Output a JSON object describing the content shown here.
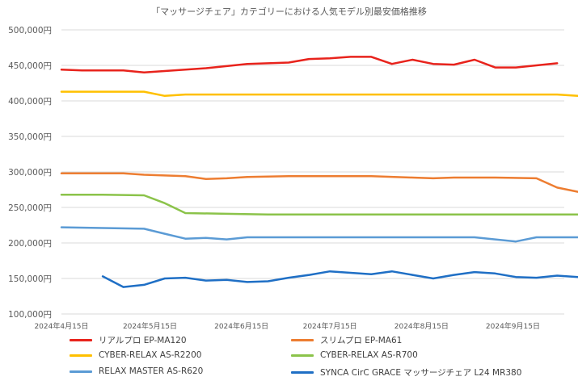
{
  "chart_data": {
    "type": "line",
    "title": "「マッサージチェア」カテゴリーにおける人気モデル別最安価格推移",
    "xlabel": "",
    "ylabel": "",
    "ylim": [
      100000,
      500000
    ],
    "y_ticks": [
      "100,000円",
      "150,000円",
      "200,000円",
      "250,000円",
      "300,000円",
      "350,000円",
      "400,000円",
      "450,000円",
      "500,000円"
    ],
    "x_tick_labels": [
      "2024年4月15日",
      "2024年5月15日",
      "2024年6月15日",
      "2024年7月15日",
      "2024年8月15日",
      "2024年9月15日"
    ],
    "x_day_range": [
      0,
      168
    ],
    "x_tick_days": [
      0,
      30,
      61,
      91,
      122,
      153
    ],
    "grid": true,
    "legend_position": "bottom",
    "series": [
      {
        "name": "リアルプロ EP-MA120",
        "color": "#E8231C",
        "x": [
          0,
          7,
          14,
          21,
          28,
          35,
          42,
          49,
          56,
          63,
          70,
          77,
          84,
          91,
          98,
          105,
          112,
          119,
          126,
          133,
          140,
          147,
          154,
          161,
          168
        ],
        "values": [
          444000,
          443000,
          443000,
          443000,
          440000,
          442000,
          444000,
          446000,
          449000,
          452000,
          453000,
          454000,
          459000,
          460000,
          462000,
          462000,
          452000,
          458000,
          452000,
          451000,
          458000,
          447000,
          447000,
          450000,
          453000
        ]
      },
      {
        "name": "スリムプロ EP-MA61",
        "color": "#ED7D31",
        "x": [
          0,
          14,
          21,
          28,
          42,
          49,
          56,
          63,
          77,
          91,
          105,
          119,
          126,
          133,
          147,
          161,
          168,
          175
        ],
        "values": [
          298000,
          298000,
          298000,
          296000,
          294000,
          290000,
          291000,
          293000,
          294000,
          294000,
          294000,
          292000,
          291000,
          292000,
          292000,
          291000,
          278000,
          272000
        ]
      },
      {
        "name": "CYBER-RELAX AS-R2200",
        "color": "#FFC000",
        "x": [
          0,
          14,
          28,
          35,
          42,
          56,
          70,
          84,
          98,
          112,
          126,
          140,
          154,
          168,
          175
        ],
        "values": [
          413000,
          413000,
          413000,
          407000,
          409000,
          409000,
          409000,
          409000,
          409000,
          409000,
          409000,
          409000,
          409000,
          409000,
          407000
        ]
      },
      {
        "name": "CYBER-RELAX AS-R700",
        "color": "#8BC34A",
        "x": [
          0,
          14,
          28,
          35,
          42,
          56,
          70,
          84,
          98,
          112,
          126,
          140,
          154,
          168,
          175
        ],
        "values": [
          268000,
          268000,
          267000,
          256000,
          242000,
          241000,
          240000,
          240000,
          240000,
          240000,
          240000,
          240000,
          240000,
          240000,
          240000
        ]
      },
      {
        "name": "RELAX MASTER AS-R620",
        "color": "#5B9BD5",
        "x": [
          0,
          14,
          28,
          35,
          42,
          49,
          56,
          63,
          77,
          91,
          105,
          119,
          133,
          140,
          147,
          154,
          161,
          168,
          175
        ],
        "values": [
          222000,
          221000,
          220000,
          213000,
          206000,
          207000,
          205000,
          208000,
          208000,
          208000,
          208000,
          208000,
          208000,
          208000,
          205000,
          202000,
          208000,
          208000,
          208000
        ]
      },
      {
        "name": "SYNCA CirC GRACE マッサージチェア L24 MR380",
        "color": "#1F6FC5",
        "x": [
          14,
          21,
          28,
          35,
          42,
          49,
          56,
          63,
          70,
          77,
          84,
          91,
          98,
          105,
          112,
          119,
          126,
          133,
          140,
          147,
          154,
          161,
          168,
          175
        ],
        "values": [
          153000,
          138000,
          141000,
          150000,
          151000,
          147000,
          148000,
          145000,
          146000,
          151000,
          155000,
          160000,
          158000,
          156000,
          160000,
          155000,
          150000,
          155000,
          159000,
          157000,
          152000,
          151000,
          154000,
          152000
        ]
      }
    ]
  }
}
